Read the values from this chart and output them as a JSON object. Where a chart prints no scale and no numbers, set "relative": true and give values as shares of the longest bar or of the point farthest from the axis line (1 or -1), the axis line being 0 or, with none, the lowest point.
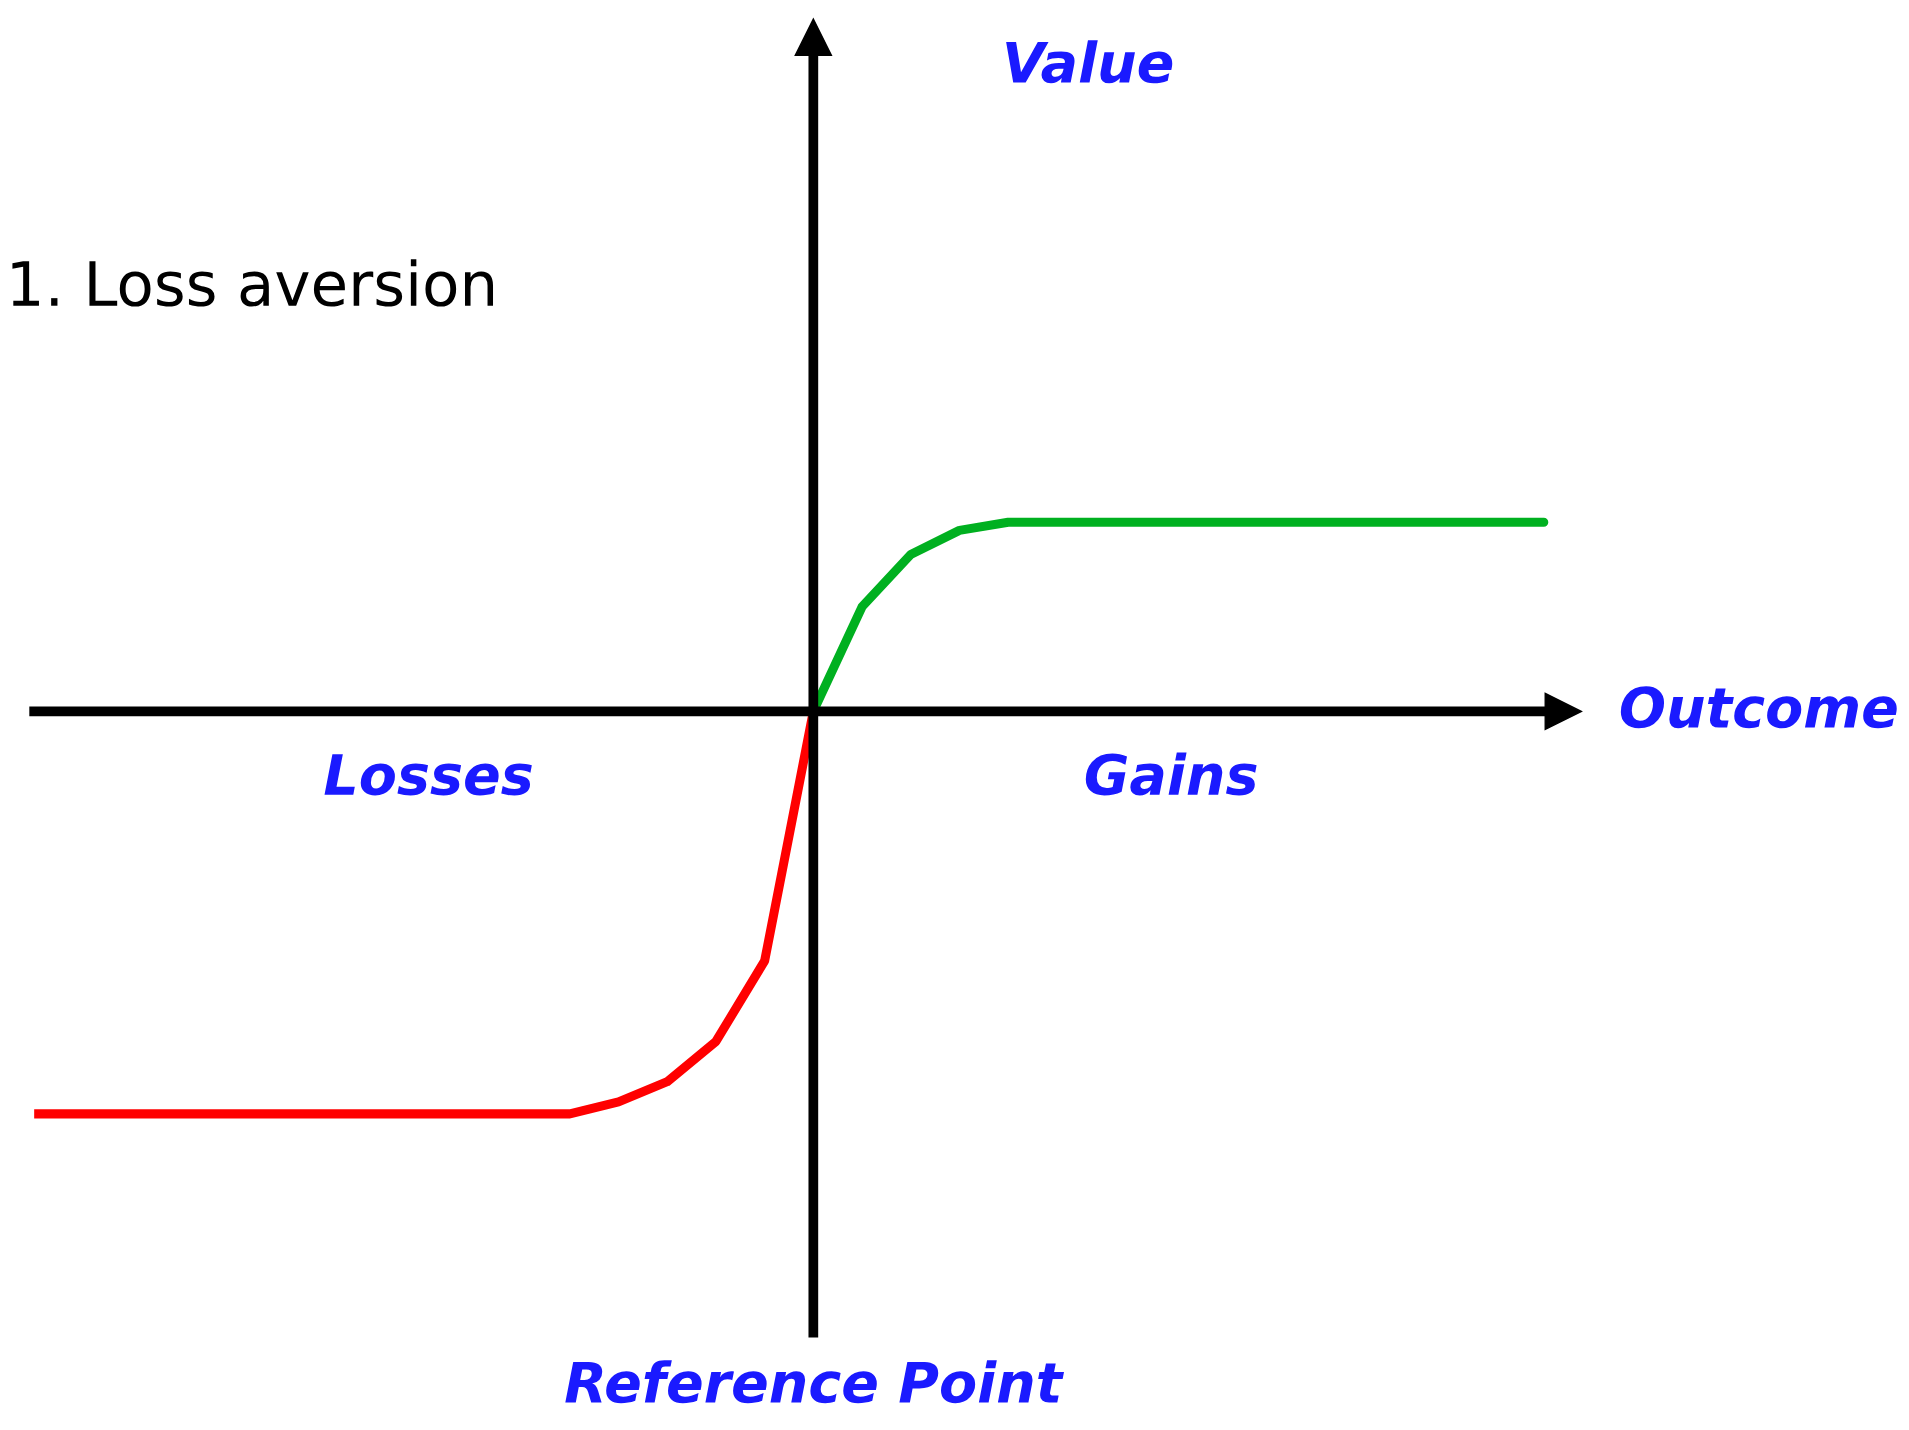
{
  "chart_data": {
    "type": "line",
    "title": "1. Loss aversion",
    "xlabel": "Outcome",
    "relative": true,
    "grid": false,
    "legend": false,
    "marker": "none",
    "line_style": "solid",
    "categories": [
      null,
      null,
      null,
      null,
      null,
      null,
      null,
      null,
      null,
      null,
      null,
      null,
      null,
      null,
      null,
      null,
      null,
      null,
      null,
      null,
      null,
      null,
      null,
      null,
      null,
      null,
      null,
      null,
      null,
      null,
      null,
      null
    ],
    "series": [
      {
        "color": "#ff0000",
        "values": [
          -1,
          -1,
          -1,
          -1,
          -1,
          -1,
          -1,
          -1,
          -1,
          -1,
          -1,
          -1,
          -0.97,
          -0.92,
          -0.82,
          -0.62,
          0,
          null,
          null,
          null,
          null,
          null,
          null,
          null,
          null,
          null,
          null,
          null,
          null,
          null,
          null,
          null
        ]
      },
      {
        "color": "#00b020",
        "values": [
          null,
          null,
          null,
          null,
          null,
          null,
          null,
          null,
          null,
          null,
          null,
          null,
          null,
          null,
          null,
          null,
          0,
          0.26,
          0.39,
          0.45,
          0.47,
          0.47,
          0.47,
          0.47,
          0.47,
          0.47,
          0.47,
          0.47,
          0.47,
          0.47,
          0.47,
          0.47
        ]
      }
    ],
    "annotations": [
      "Value",
      "Losses",
      "Gains",
      "Reference Point"
    ]
  }
}
